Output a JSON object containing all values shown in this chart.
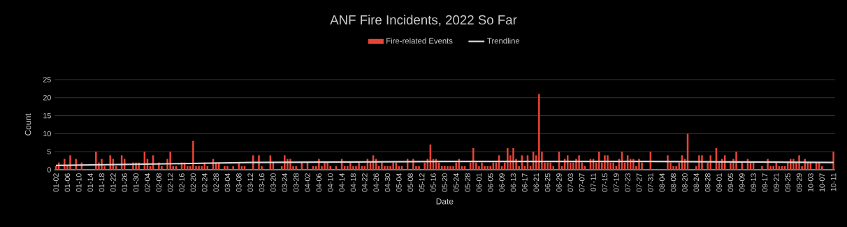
{
  "chart_data": {
    "type": "bar",
    "title": "ANF Fire Incidents, 2022 So Far",
    "xlabel": "Date",
    "ylabel": "Count",
    "categories": [
      "01-02",
      null,
      null,
      null,
      "01-06",
      null,
      null,
      null,
      "01-10",
      null,
      null,
      null,
      "01-14",
      null,
      null,
      null,
      "01-18",
      null,
      null,
      null,
      "01-22",
      null,
      null,
      null,
      "01-26",
      null,
      null,
      null,
      "01-30",
      null,
      null,
      null,
      "02-04",
      null,
      null,
      null,
      "02-08",
      null,
      null,
      null,
      "02-12",
      null,
      null,
      null,
      "02-16",
      null,
      null,
      null,
      "02-20",
      null,
      null,
      null,
      "02-24",
      null,
      null,
      null,
      "02-28",
      null,
      null,
      null,
      "03-04",
      null,
      null,
      null,
      "03-08",
      null,
      null,
      null,
      "03-12",
      null,
      null,
      null,
      "03-16",
      null,
      null,
      null,
      "03-20",
      null,
      null,
      null,
      "03-24",
      null,
      null,
      null,
      "03-28",
      null,
      null,
      null,
      "04-02",
      null,
      null,
      null,
      "04-06",
      null,
      null,
      null,
      "04-10",
      null,
      null,
      null,
      "04-14",
      null,
      null,
      null,
      "04-18",
      null,
      null,
      null,
      "04-22",
      null,
      null,
      null,
      "04-26",
      null,
      null,
      null,
      "04-30",
      null,
      null,
      null,
      "05-04",
      null,
      null,
      null,
      "05-08",
      null,
      null,
      null,
      "05-12",
      null,
      null,
      null,
      "05-16",
      null,
      null,
      null,
      "05-20",
      null,
      null,
      null,
      "05-24",
      null,
      null,
      null,
      "05-28",
      null,
      null,
      null,
      "06-01",
      null,
      null,
      null,
      "06-05",
      null,
      null,
      null,
      "06-09",
      null,
      null,
      null,
      "06-13",
      null,
      null,
      null,
      "06-17",
      null,
      null,
      null,
      "06-21",
      null,
      null,
      null,
      "06-25",
      null,
      null,
      null,
      "06-29",
      null,
      null,
      null,
      "07-03",
      null,
      null,
      null,
      "07-07",
      null,
      null,
      null,
      "07-11",
      null,
      null,
      null,
      "07-15",
      null,
      null,
      null,
      "07-19",
      null,
      null,
      null,
      "07-23",
      null,
      null,
      null,
      "07-27",
      null,
      null,
      null,
      "07-31",
      null,
      null,
      null,
      "08-04",
      null,
      null,
      null,
      "08-08",
      null,
      null,
      null,
      "08-20",
      null,
      null,
      null,
      "08-24",
      null,
      null,
      null,
      "08-28",
      null,
      null,
      null,
      "09-01",
      null,
      null,
      null,
      "09-05",
      null,
      null,
      null,
      "09-09",
      null,
      null,
      null,
      "09-13",
      null,
      null,
      null,
      "09-17",
      null,
      null,
      null,
      "09-21",
      null,
      null,
      null,
      "09-25",
      null,
      null,
      null,
      "09-29",
      null,
      null,
      null,
      "10-03",
      null,
      null,
      null,
      "10-07",
      null,
      null,
      null,
      "10-11"
    ],
    "series": [
      {
        "name": "Fire-related Events",
        "color": "#ea4335",
        "values": [
          1,
          2,
          0,
          3,
          1,
          4,
          0,
          3,
          0,
          2,
          0,
          0,
          0,
          0,
          5,
          2,
          3,
          1,
          0,
          4,
          3,
          1,
          0,
          4,
          3,
          0,
          0,
          2,
          2,
          2,
          0,
          5,
          3,
          1,
          4,
          0,
          2,
          1,
          0,
          3,
          5,
          1,
          1,
          0,
          2,
          2,
          1,
          1,
          8,
          1,
          1,
          1,
          2,
          1,
          0,
          3,
          2,
          2,
          0,
          1,
          1,
          0,
          1,
          0,
          2,
          1,
          1,
          0,
          0,
          4,
          0,
          4,
          1,
          0,
          0,
          4,
          2,
          0,
          0,
          1,
          4,
          3,
          3,
          1,
          1,
          0,
          2,
          0,
          2,
          0,
          1,
          1,
          3,
          1,
          2,
          2,
          1,
          0,
          1,
          0,
          3,
          1,
          1,
          2,
          1,
          1,
          2,
          1,
          1,
          3,
          2,
          4,
          3,
          1,
          2,
          1,
          1,
          1,
          2,
          2,
          1,
          1,
          0,
          3,
          0,
          3,
          1,
          1,
          0,
          2,
          3,
          7,
          3,
          3,
          2,
          1,
          1,
          1,
          1,
          1,
          2,
          3,
          1,
          1,
          0,
          2,
          6,
          2,
          1,
          2,
          1,
          1,
          1,
          2,
          2,
          4,
          1,
          2,
          6,
          4,
          6,
          3,
          1,
          4,
          1,
          4,
          1,
          5,
          4,
          21,
          5,
          2,
          2,
          2,
          1,
          0,
          5,
          1,
          3,
          4,
          2,
          2,
          3,
          4,
          2,
          1,
          0,
          3,
          3,
          2,
          5,
          2,
          4,
          4,
          2,
          2,
          1,
          3,
          5,
          2,
          4,
          3,
          3,
          1,
          3,
          2,
          0,
          0,
          5,
          0,
          0,
          0,
          0,
          0,
          4,
          2,
          1,
          1,
          2,
          4,
          3,
          10,
          0,
          0,
          1,
          4,
          4,
          0,
          2,
          4,
          0,
          6,
          2,
          3,
          4,
          0,
          2,
          3,
          5,
          0,
          2,
          0,
          3,
          2,
          2,
          0,
          0,
          1,
          0,
          3,
          1,
          1,
          2,
          1,
          1,
          1,
          2,
          3,
          3,
          2,
          4,
          1,
          3,
          2,
          2,
          0,
          2,
          2,
          1,
          0,
          0,
          0,
          5
        ]
      },
      {
        "name": "Trendline",
        "type": "line",
        "color": "#d9d9d9",
        "values": [
          1.2,
          null,
          null,
          null,
          null,
          null,
          null,
          null,
          null,
          null,
          null,
          null,
          null,
          null,
          null,
          null,
          null,
          null,
          null,
          null,
          null,
          null,
          null,
          null,
          null,
          null,
          null,
          null,
          null,
          null,
          null,
          null,
          null,
          null,
          null,
          null,
          null,
          null,
          null,
          null,
          null,
          null,
          null,
          null,
          1.7,
          null,
          null,
          null,
          null,
          null,
          null,
          null,
          null,
          null,
          null,
          null,
          null,
          null,
          null,
          null,
          null,
          null,
          null,
          null,
          null,
          null,
          null,
          null,
          2.0,
          null,
          null,
          null,
          null,
          null,
          null,
          null,
          null,
          null,
          null,
          null,
          null,
          null,
          null,
          null,
          null,
          null,
          null,
          null,
          null,
          null,
          null,
          null,
          null,
          null,
          null,
          null,
          null,
          null,
          null,
          null,
          null,
          null,
          null,
          null,
          null,
          null,
          null,
          null,
          null,
          null,
          null,
          null,
          null,
          null,
          null,
          null,
          null,
          null,
          null,
          null,
          null,
          null,
          null,
          null,
          null,
          null,
          null,
          null,
          null,
          null,
          null,
          null,
          null,
          null,
          null,
          null,
          2.3,
          null,
          null,
          null,
          null,
          null,
          null,
          null,
          null,
          null,
          null,
          null,
          null,
          null,
          null,
          null,
          null,
          null,
          null,
          null,
          null,
          null,
          null,
          null,
          null,
          null,
          null,
          null,
          null,
          null,
          null,
          null,
          null,
          null,
          null,
          null,
          null,
          null,
          null,
          null,
          null,
          null,
          null,
          null,
          null,
          null,
          null,
          null,
          null,
          null,
          null,
          null,
          null,
          null,
          null,
          null,
          null,
          null,
          null,
          null,
          null,
          null,
          null,
          null,
          null,
          null,
          null,
          null,
          null,
          null,
          null,
          null,
          2.3,
          null,
          null,
          null,
          null,
          null,
          null,
          null,
          null,
          null,
          null,
          null,
          null,
          null,
          null,
          null,
          null,
          null,
          null,
          null,
          null,
          null,
          null,
          null,
          null,
          null,
          null,
          null,
          null,
          null,
          null,
          null,
          null,
          null,
          null,
          null,
          null,
          null,
          null,
          null,
          null,
          null,
          null,
          null,
          null,
          null,
          null,
          null,
          null,
          null,
          null,
          null,
          null,
          null,
          null,
          null,
          null,
          null,
          null,
          null,
          null,
          null,
          null,
          null,
          2.0
        ]
      }
    ],
    "ylim": [
      0,
      25
    ],
    "yticks": [
      0,
      5,
      10,
      15,
      20,
      25
    ],
    "grid": "y",
    "legend": "top"
  }
}
